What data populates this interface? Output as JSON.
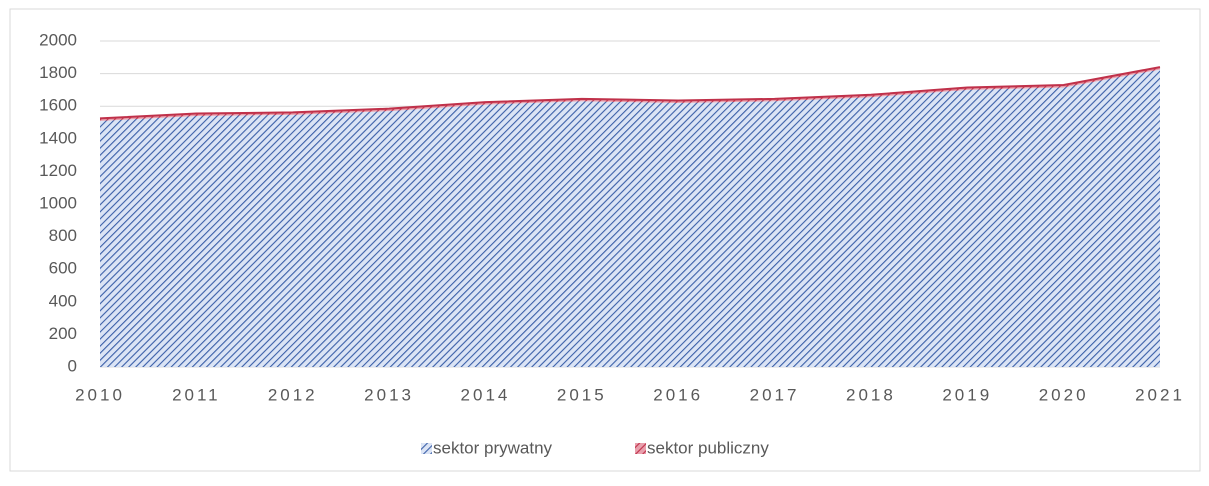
{
  "chart_data": {
    "type": "stacked_area",
    "categories": [
      "2010",
      "2011",
      "2012",
      "2013",
      "2014",
      "2015",
      "2016",
      "2017",
      "2018",
      "2019",
      "2020",
      "2021"
    ],
    "series": [
      {
        "name": "sektor prywatny",
        "color": "#4472c4",
        "values": [
          1510,
          1540,
          1547,
          1570,
          1610,
          1630,
          1620,
          1630,
          1655,
          1700,
          1715,
          1825
        ]
      },
      {
        "name": "sektor publiczny",
        "color": "#c0314a",
        "values": [
          15,
          15,
          15,
          15,
          15,
          15,
          15,
          15,
          15,
          15,
          15,
          15
        ]
      }
    ],
    "ylim": [
      0,
      2000
    ],
    "yticks": [
      0,
      200,
      400,
      600,
      800,
      1000,
      1200,
      1400,
      1600,
      1800,
      2000
    ],
    "grid": true,
    "legend": "bottom"
  }
}
